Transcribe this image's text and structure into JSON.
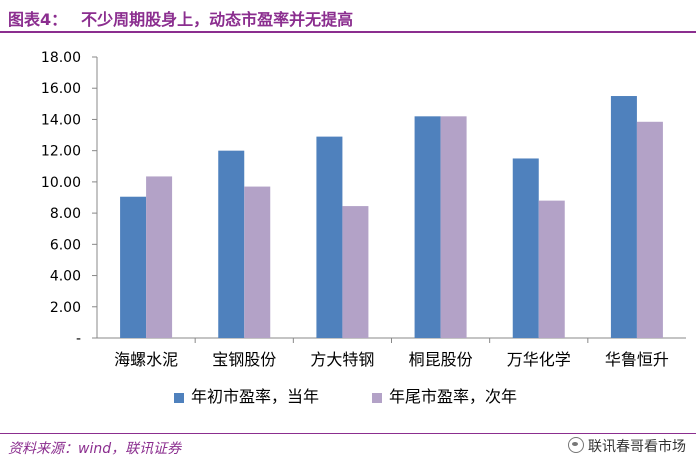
{
  "header": {
    "label": "图表4：",
    "title": "不少周期股身上，动态市盈率并无提高"
  },
  "chart_data": {
    "type": "bar",
    "title": "不少周期股身上，动态市盈率并无提高",
    "categories": [
      "海螺水泥",
      "宝钢股份",
      "方大特钢",
      "桐昆股份",
      "万华化学",
      "华鲁恒升"
    ],
    "series": [
      {
        "name": "年初市盈率，当年",
        "color": "#4F81BD",
        "values": [
          9.05,
          12.0,
          12.9,
          14.2,
          11.5,
          15.5
        ]
      },
      {
        "name": "年尾市盈率，次年",
        "color": "#B3A2C7",
        "values": [
          10.35,
          9.7,
          8.45,
          14.2,
          8.8,
          13.85
        ]
      }
    ],
    "yticks": [
      "-",
      "2.00",
      "4.00",
      "6.00",
      "8.00",
      "10.00",
      "12.00",
      "14.00",
      "16.00",
      "18.00"
    ],
    "ylim": [
      0,
      18
    ],
    "xlabel": "",
    "ylabel": "",
    "grid": false,
    "legend": "bottom"
  },
  "footer": {
    "source": "资料来源：wind，联讯证券",
    "watermark": "联讯春哥看市场"
  }
}
